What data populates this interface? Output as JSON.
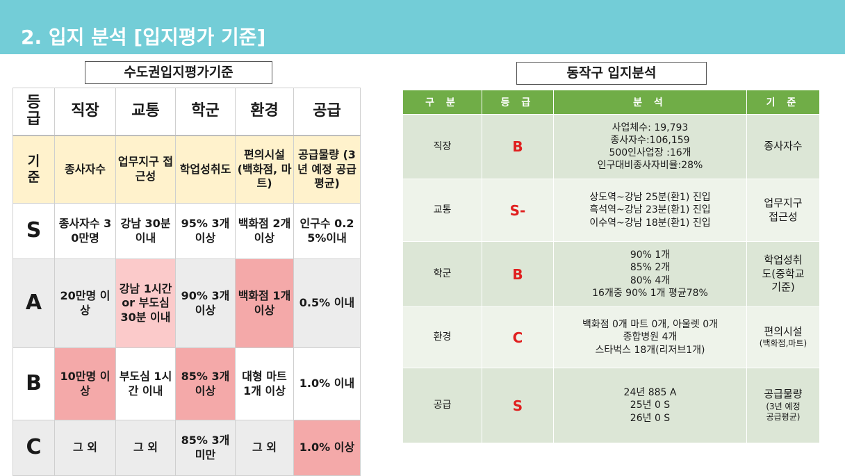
{
  "header": {
    "title": "2. 입지 분석 [입지평가 기준]"
  },
  "left": {
    "label": "수도권입지평가기준",
    "columns": [
      "등급",
      "직장",
      "교통",
      "학군",
      "환경",
      "공급"
    ],
    "criteria_row": {
      "grade": "기준",
      "cells": [
        "종사자수",
        "업무지구 접근성",
        "학업성취도",
        "편의시설 (백화점, 마트)",
        "공급물량 (3년 예정 공급 평균)"
      ]
    },
    "rows": [
      {
        "grade": "S",
        "cells": [
          "종사자수 30만명",
          "강남 30분 이내",
          "95% 3개 이상",
          "백화점 2개 이상",
          "인구수 0.25%이내"
        ]
      },
      {
        "grade": "A",
        "cells": [
          "20만명 이상",
          "강남 1시간 or 부도심 30분 이내",
          "90% 3개 이상",
          "백화점 1개 이상",
          "0.5% 이내"
        ]
      },
      {
        "grade": "B",
        "cells": [
          "10만명 이상",
          "부도심 1시간 이내",
          "85% 3개 이상",
          "대형 마트 1개 이상",
          "1.0% 이내"
        ]
      },
      {
        "grade": "C",
        "cells": [
          "그 외",
          "그 외",
          "85% 3개 미만",
          "그 외",
          "1.0% 이상"
        ]
      }
    ]
  },
  "right": {
    "label": "동작구 입지분석",
    "headers": [
      "구 분",
      "등 급",
      "분 석",
      "기 준"
    ],
    "rows": [
      {
        "category": "직장",
        "grade": "B",
        "analysis": [
          "사업체수: 19,793",
          "종사자수:106,159",
          "500인사업장 :16개",
          "인구대비종사자비율:28%"
        ],
        "basis": [
          "종사자수"
        ]
      },
      {
        "category": "교통",
        "grade": "S-",
        "analysis": [
          "상도역~강남 25분(환1) 진입",
          "흑석역~강남 23분(환1) 진입",
          "이수역~강남 18분(환1) 진입"
        ],
        "basis": [
          "업무지구",
          "접근성"
        ]
      },
      {
        "category": "학군",
        "grade": "B",
        "analysis": [
          "90% 1개",
          "85% 2개",
          "80% 4개",
          "16개중  90% 1개 평균78%"
        ],
        "basis": [
          "학업성취",
          "도(중학교",
          "기준)"
        ]
      },
      {
        "category": "환경",
        "grade": "C",
        "analysis": [
          "백화점 0개 마트 0개, 아울렛 0개",
          "종합병원 4개",
          "스타벅스 18개(리저브1개)"
        ],
        "basis": [
          "편의시설",
          "(백화점,마트)"
        ]
      },
      {
        "category": "공급",
        "grade": "S",
        "analysis": [
          "24년 885 A",
          "25년 0 S",
          "26년 0 S"
        ],
        "basis": [
          "공급물량",
          "(3년 예정",
          "공급평균)"
        ]
      }
    ]
  },
  "colors": {
    "title_bar": "#73cdd7",
    "header_green": "#70ad47",
    "grade_red": "#e01f1f",
    "highlight_pink": "#f4a9a9",
    "criteria_yellow": "#fff2cc"
  }
}
